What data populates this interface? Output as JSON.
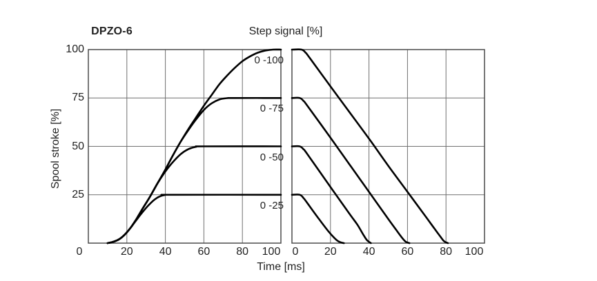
{
  "header": {
    "model": "DPZO-6",
    "signal_title": "Step signal [%]"
  },
  "colors": {
    "curve": "#000000",
    "grid": "#6f6f6f",
    "border": "#4a4a4a",
    "text": "#1f1f1f",
    "background": "#ffffff"
  },
  "chart_data": {
    "type": "line",
    "title": "DPZO-6",
    "right_title": "Step signal [%]",
    "xlabel": "Time [ms]",
    "ylabel": "Spool stroke [%]",
    "xlim": [
      0,
      100
    ],
    "ylim": [
      0,
      100
    ],
    "x_ticks": [
      0,
      20,
      40,
      60,
      80,
      100
    ],
    "y_ticks": [
      0,
      25,
      50,
      75,
      100
    ],
    "y_tick_labels_visible": [
      100,
      75,
      50,
      25
    ],
    "grid": true,
    "legend_position": "inline-labels-left-panel",
    "panels": [
      {
        "name": "step-signal-applied",
        "series": [
          {
            "label": "0 -100",
            "plateau": 100,
            "points": [
              [
                10,
                0
              ],
              [
                13,
                0.7
              ],
              [
                16,
                2
              ],
              [
                19,
                4.5
              ],
              [
                22,
                8
              ],
              [
                25,
                12.5
              ],
              [
                28,
                17.5
              ],
              [
                32,
                24
              ],
              [
                36,
                31
              ],
              [
                40,
                38
              ],
              [
                44,
                45.5
              ],
              [
                48,
                52.5
              ],
              [
                52,
                59
              ],
              [
                56,
                65
              ],
              [
                60,
                71
              ],
              [
                64,
                76.5
              ],
              [
                68,
                82
              ],
              [
                72,
                86.5
              ],
              [
                76,
                90.5
              ],
              [
                80,
                94
              ],
              [
                84,
                96.5
              ],
              [
                88,
                98.4
              ],
              [
                92,
                99.5
              ],
              [
                96,
                100
              ],
              [
                100,
                100
              ]
            ]
          },
          {
            "label": "0 -75",
            "plateau": 75,
            "points": [
              [
                10,
                0
              ],
              [
                13,
                0.7
              ],
              [
                16,
                2
              ],
              [
                19,
                4.5
              ],
              [
                22,
                8
              ],
              [
                25,
                12.5
              ],
              [
                28,
                17.5
              ],
              [
                32,
                24
              ],
              [
                36,
                31
              ],
              [
                40,
                38
              ],
              [
                44,
                45.5
              ],
              [
                48,
                52.5
              ],
              [
                52,
                58.5
              ],
              [
                56,
                64
              ],
              [
                60,
                68.8
              ],
              [
                64,
                72.2
              ],
              [
                68,
                74.2
              ],
              [
                72,
                74.9
              ],
              [
                76,
                75
              ],
              [
                100,
                75
              ]
            ]
          },
          {
            "label": "0 -50",
            "plateau": 50,
            "points": [
              [
                10,
                0
              ],
              [
                13,
                0.7
              ],
              [
                16,
                2
              ],
              [
                19,
                4.5
              ],
              [
                22,
                8
              ],
              [
                25,
                12.5
              ],
              [
                28,
                17.5
              ],
              [
                32,
                24
              ],
              [
                36,
                31
              ],
              [
                40,
                37
              ],
              [
                44,
                42
              ],
              [
                48,
                46
              ],
              [
                52,
                48.6
              ],
              [
                56,
                49.8
              ],
              [
                60,
                50
              ],
              [
                100,
                50
              ]
            ]
          },
          {
            "label": "0 -25",
            "plateau": 25,
            "points": [
              [
                10,
                0
              ],
              [
                13,
                0.7
              ],
              [
                16,
                2
              ],
              [
                19,
                4.5
              ],
              [
                22,
                8
              ],
              [
                25,
                12
              ],
              [
                28,
                15.8
              ],
              [
                31,
                19.3
              ],
              [
                34,
                22.2
              ],
              [
                37,
                24.1
              ],
              [
                40,
                24.9
              ],
              [
                43,
                25
              ],
              [
                100,
                25
              ]
            ]
          }
        ]
      },
      {
        "name": "step-signal-removed",
        "series": [
          {
            "start": 100,
            "points": [
              [
                0,
                100
              ],
              [
                5,
                100
              ],
              [
                7,
                98.5
              ],
              [
                9,
                96
              ],
              [
                20,
                81
              ],
              [
                30,
                67.5
              ],
              [
                40,
                54
              ],
              [
                50,
                40
              ],
              [
                60,
                26.5
              ],
              [
                70,
                13
              ],
              [
                74,
                7.5
              ],
              [
                77,
                3.5
              ],
              [
                79,
                1
              ],
              [
                81,
                0
              ]
            ]
          },
          {
            "start": 75,
            "points": [
              [
                0,
                75
              ],
              [
                4,
                75
              ],
              [
                6,
                73.5
              ],
              [
                8,
                71
              ],
              [
                20,
                54.5
              ],
              [
                30,
                40.5
              ],
              [
                40,
                26.5
              ],
              [
                50,
                12.5
              ],
              [
                54,
                7
              ],
              [
                57,
                3
              ],
              [
                59,
                0.8
              ],
              [
                61,
                0
              ]
            ]
          },
          {
            "start": 50,
            "points": [
              [
                0,
                50
              ],
              [
                4,
                50
              ],
              [
                6,
                48.5
              ],
              [
                8,
                46
              ],
              [
                20,
                29
              ],
              [
                30,
                15
              ],
              [
                34,
                9.5
              ],
              [
                37,
                4.5
              ],
              [
                39,
                1.5
              ],
              [
                41,
                0
              ]
            ]
          },
          {
            "start": 25,
            "points": [
              [
                0,
                25
              ],
              [
                4,
                25
              ],
              [
                6,
                23.3
              ],
              [
                8,
                20.7
              ],
              [
                14,
                12.5
              ],
              [
                19,
                6
              ],
              [
                22,
                2.7
              ],
              [
                24,
                1
              ],
              [
                26,
                0.2
              ],
              [
                27,
                0
              ]
            ]
          }
        ]
      }
    ]
  }
}
